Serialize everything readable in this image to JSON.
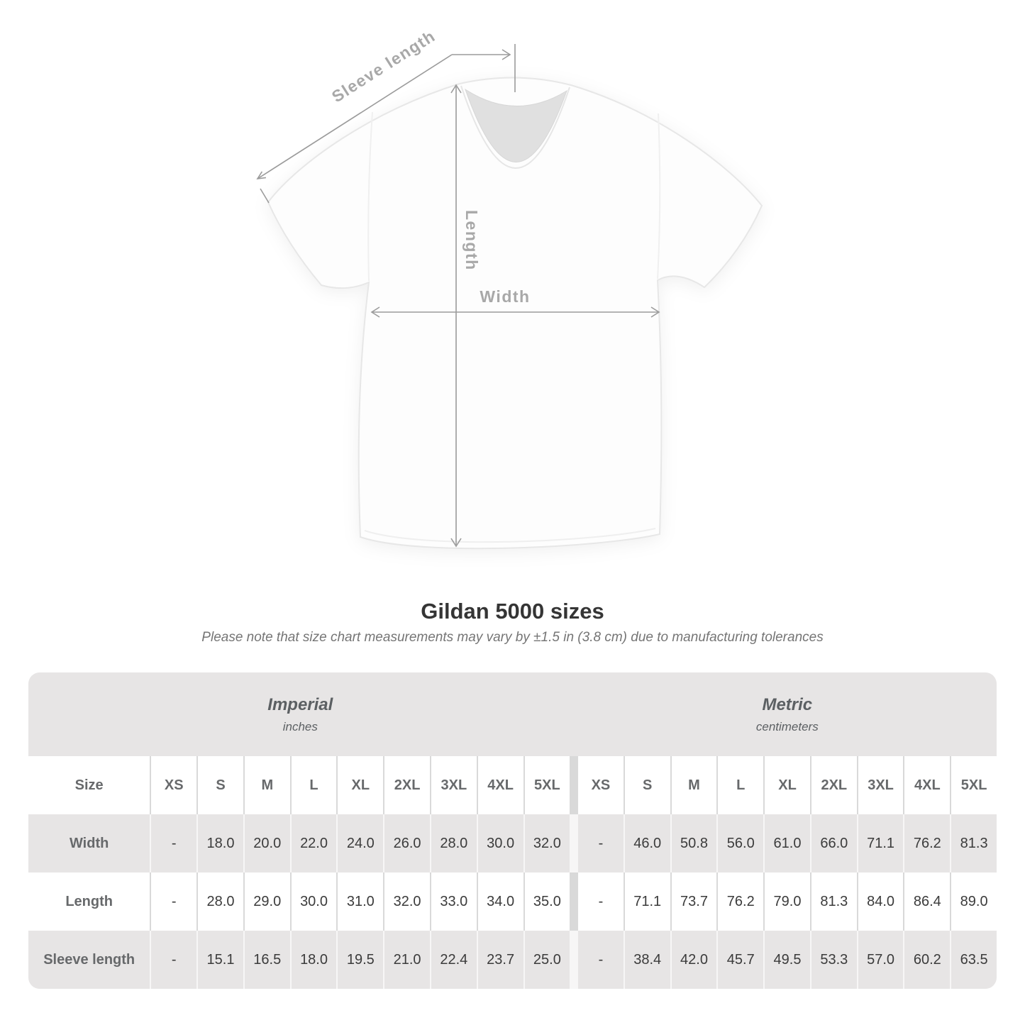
{
  "diagram": {
    "labels": {
      "sleeve_length": "Sleeve length",
      "length": "Length",
      "width": "Width"
    },
    "line_color": "#9b9b9b"
  },
  "chart_data": {
    "type": "table",
    "title": "Gildan 5000 sizes",
    "subtitle": "Please note that size chart measurements may vary by ±1.5 in (3.8 cm) due to manufacturing tolerances",
    "corner_label": "Size",
    "section_headers": [
      {
        "name": "Imperial",
        "unit": "inches"
      },
      {
        "name": "Metric",
        "unit": "centimeters"
      }
    ],
    "size_columns": [
      "XS",
      "S",
      "M",
      "L",
      "XL",
      "2XL",
      "3XL",
      "4XL",
      "5XL"
    ],
    "rows": [
      {
        "label": "Width",
        "imperial": [
          "-",
          "18.0",
          "20.0",
          "22.0",
          "24.0",
          "26.0",
          "28.0",
          "30.0",
          "32.0"
        ],
        "metric": [
          "-",
          "46.0",
          "50.8",
          "56.0",
          "61.0",
          "66.0",
          "71.1",
          "76.2",
          "81.3"
        ]
      },
      {
        "label": "Length",
        "imperial": [
          "-",
          "28.0",
          "29.0",
          "30.0",
          "31.0",
          "32.0",
          "33.0",
          "34.0",
          "35.0"
        ],
        "metric": [
          "-",
          "71.1",
          "73.7",
          "76.2",
          "79.0",
          "81.3",
          "84.0",
          "86.4",
          "89.0"
        ]
      },
      {
        "label": "Sleeve length",
        "imperial": [
          "-",
          "15.1",
          "16.5",
          "18.0",
          "19.5",
          "21.0",
          "22.4",
          "23.7",
          "25.0"
        ],
        "metric": [
          "-",
          "38.4",
          "42.0",
          "45.7",
          "49.5",
          "53.3",
          "57.0",
          "60.2",
          "63.5"
        ]
      }
    ],
    "colors": {
      "band_gray": "#e7e5e5",
      "divider_gray": "#d9d9d9",
      "header_text": "#67696b",
      "value_text": "#3b3b3b",
      "annotation_gray": "#9b9b9b"
    }
  }
}
